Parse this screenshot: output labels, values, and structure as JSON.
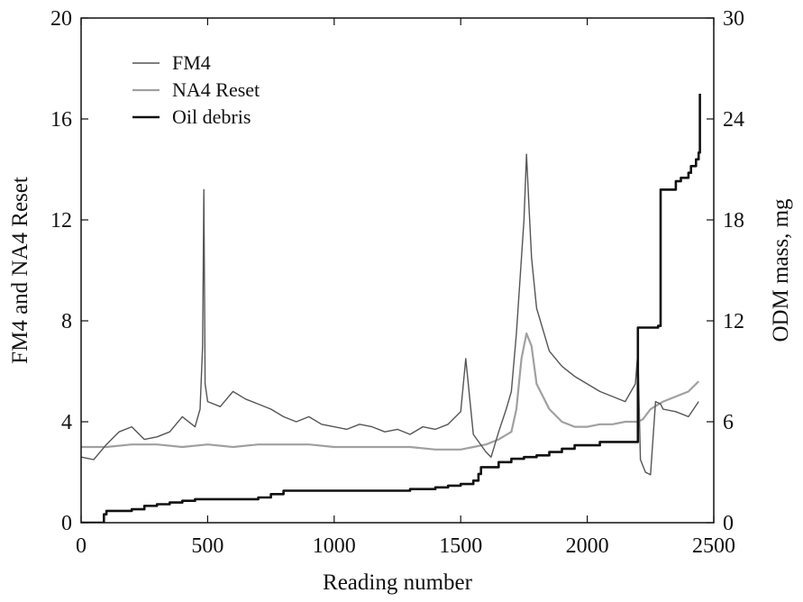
{
  "chart_data": {
    "type": "line",
    "xlabel": "Reading number",
    "ylabel_left": "FM4 and NA4 Reset",
    "ylabel_right": "ODM mass, mg",
    "xlim": [
      0,
      2500
    ],
    "ylim_left": [
      0,
      20
    ],
    "ylim_right": [
      0,
      30
    ],
    "x_ticks": [
      0,
      500,
      1000,
      1500,
      2000,
      2500
    ],
    "y_ticks_left": [
      0,
      4,
      8,
      12,
      16,
      20
    ],
    "y_ticks_right": [
      0,
      6,
      12,
      18,
      24,
      30
    ],
    "grid": false,
    "legend_position": "top-left",
    "series": [
      {
        "name": "FM4",
        "axis": "left",
        "color": "#555555",
        "x": [
          0,
          50,
          100,
          150,
          200,
          250,
          300,
          350,
          400,
          450,
          470,
          480,
          485,
          490,
          500,
          550,
          600,
          650,
          700,
          750,
          800,
          850,
          900,
          950,
          1000,
          1050,
          1100,
          1150,
          1200,
          1250,
          1300,
          1350,
          1400,
          1450,
          1500,
          1520,
          1550,
          1600,
          1620,
          1650,
          1680,
          1700,
          1720,
          1740,
          1750,
          1760,
          1770,
          1780,
          1790,
          1800,
          1850,
          1900,
          1950,
          2000,
          2050,
          2100,
          2150,
          2190,
          2200,
          2210,
          2230,
          2250,
          2270,
          2290,
          2300,
          2350,
          2400,
          2440
        ],
        "y": [
          2.6,
          2.5,
          3.1,
          3.6,
          3.8,
          3.3,
          3.4,
          3.6,
          4.2,
          3.8,
          4.5,
          7.0,
          13.2,
          5.5,
          4.8,
          4.6,
          5.2,
          4.9,
          4.7,
          4.5,
          4.2,
          4.0,
          4.2,
          3.9,
          3.8,
          3.7,
          3.9,
          3.8,
          3.6,
          3.7,
          3.5,
          3.8,
          3.7,
          3.9,
          4.4,
          6.5,
          3.5,
          2.8,
          2.6,
          3.6,
          4.5,
          5.2,
          7.5,
          10.5,
          12.0,
          14.6,
          12.5,
          10.5,
          9.5,
          8.5,
          6.8,
          6.2,
          5.8,
          5.5,
          5.2,
          5.0,
          4.8,
          5.5,
          6.8,
          2.5,
          2.0,
          1.9,
          4.8,
          4.7,
          4.5,
          4.4,
          4.2,
          4.8
        ]
      },
      {
        "name": "NA4 Reset",
        "axis": "left",
        "color": "#a0a0a0",
        "x": [
          0,
          100,
          200,
          300,
          400,
          500,
          600,
          700,
          800,
          900,
          1000,
          1100,
          1200,
          1300,
          1400,
          1500,
          1550,
          1600,
          1650,
          1700,
          1720,
          1740,
          1760,
          1780,
          1800,
          1850,
          1900,
          1950,
          2000,
          2050,
          2100,
          2150,
          2200,
          2220,
          2250,
          2300,
          2350,
          2400,
          2440
        ],
        "y": [
          3.0,
          3.0,
          3.1,
          3.1,
          3.0,
          3.1,
          3.0,
          3.1,
          3.1,
          3.1,
          3.0,
          3.0,
          3.0,
          3.0,
          2.9,
          2.9,
          3.0,
          3.1,
          3.3,
          3.6,
          4.5,
          6.5,
          7.5,
          7.0,
          5.5,
          4.5,
          4.0,
          3.8,
          3.8,
          3.9,
          3.9,
          4.0,
          4.0,
          4.1,
          4.5,
          4.8,
          5.0,
          5.2,
          5.6
        ]
      },
      {
        "name": "Oil debris",
        "axis": "right",
        "color": "#111111",
        "x": [
          0,
          70,
          90,
          100,
          150,
          200,
          250,
          300,
          350,
          400,
          450,
          500,
          550,
          600,
          700,
          750,
          800,
          900,
          1000,
          1100,
          1200,
          1300,
          1400,
          1450,
          1500,
          1550,
          1570,
          1580,
          1600,
          1650,
          1700,
          1750,
          1800,
          1850,
          1900,
          1950,
          2000,
          2050,
          2100,
          2190,
          2200,
          2280,
          2290,
          2350,
          2370,
          2400,
          2410,
          2430,
          2440,
          2445
        ],
        "y": [
          0,
          0,
          0.5,
          0.7,
          0.7,
          0.8,
          1.0,
          1.1,
          1.2,
          1.3,
          1.4,
          1.4,
          1.4,
          1.4,
          1.5,
          1.7,
          1.9,
          1.9,
          1.9,
          1.9,
          1.9,
          2.0,
          2.1,
          2.2,
          2.3,
          2.5,
          2.9,
          3.3,
          3.3,
          3.6,
          3.8,
          3.9,
          4.0,
          4.2,
          4.4,
          4.6,
          4.6,
          4.8,
          4.8,
          4.8,
          11.6,
          11.7,
          19.8,
          20.3,
          20.5,
          20.8,
          21.2,
          21.6,
          22.0,
          25.5
        ]
      }
    ]
  }
}
